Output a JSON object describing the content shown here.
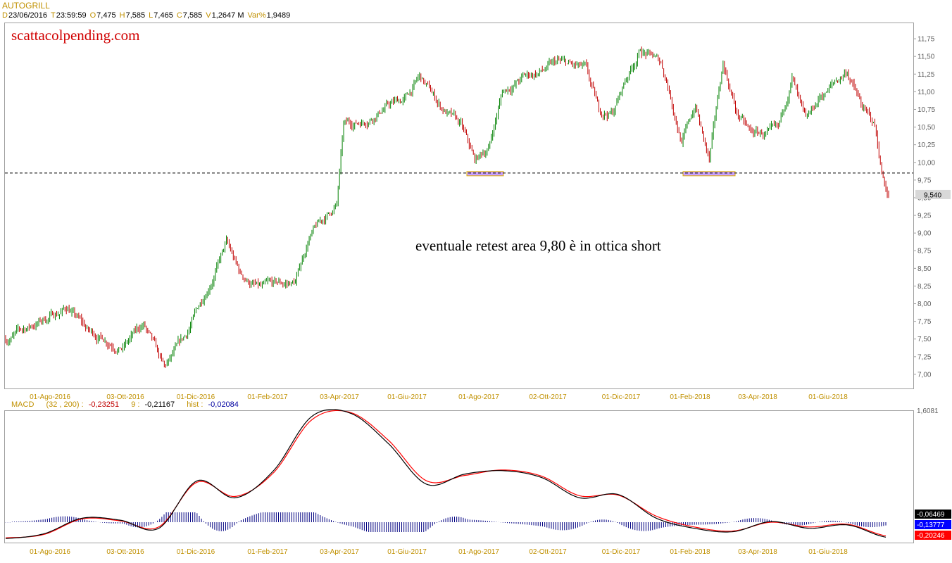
{
  "header": {
    "symbol": "AUTOGRILL",
    "fields": [
      {
        "key": "D",
        "value": "23/06/2016"
      },
      {
        "key": "T",
        "value": "23:59:59"
      },
      {
        "key": "O",
        "value": "7,475"
      },
      {
        "key": "H",
        "value": "7,585"
      },
      {
        "key": "L",
        "value": "7,465"
      },
      {
        "key": "C",
        "value": "7,585"
      },
      {
        "key": "V",
        "value": "1,2647 M"
      },
      {
        "key": "Var%",
        "value": "1,9489"
      }
    ]
  },
  "watermark": "scattacolpending.com",
  "annotation": "eventuale  retest area 9,80 è in ottica short",
  "macd_header": {
    "label": "MACD",
    "params": "(32 , 200) :",
    "macd_value": "-0,23251",
    "signal_label": "9 :",
    "signal_value": "-0,21167",
    "hist_label": "hist :",
    "hist_value": "-0,02084"
  },
  "colors": {
    "up_bar": "#008000",
    "down_bar": "#c00000",
    "axis_text": "#c09000",
    "macd_line": "#000000",
    "signal_line": "#ff0000",
    "histogram": "#000080",
    "support_highlight": "#c8a0ff"
  },
  "chart_data": [
    {
      "type": "ohlc",
      "title": "AUTOGRILL",
      "x_tick_labels": [
        "01-Ago-2016",
        "03-Ott-2016",
        "01-Dic-2016",
        "01-Feb-2017",
        "03-Apr-2017",
        "01-Giu-2017",
        "01-Ago-2017",
        "02-Ott-2017",
        "01-Dic-2017",
        "01-Feb-2018",
        "03-Apr-2018",
        "01-Giu-2018"
      ],
      "y_tick_labels": [
        "7,00",
        "7,25",
        "7,50",
        "7,75",
        "8,00",
        "8,25",
        "8,50",
        "8,75",
        "9,00",
        "9,25",
        "9,50",
        "9,75",
        "10,00",
        "10,25",
        "10,50",
        "10,75",
        "11,00",
        "11,25",
        "11,50",
        "11,75"
      ],
      "ylim": [
        6.8,
        11.95
      ],
      "last_price_label": "9,540",
      "last_price": 9.54,
      "support_level": 9.85,
      "support_zones": [
        {
          "from": "21-Jul-2017",
          "to": "18-Ago-2017",
          "level": 9.84
        },
        {
          "from": "26-Gen-2018",
          "to": "07-Mar-2018",
          "level": 9.84
        }
      ],
      "price_path": [
        {
          "week": 0,
          "close": 7.5
        },
        {
          "week": 6,
          "close": 7.8
        },
        {
          "week": 9,
          "close": 7.95
        },
        {
          "week": 12,
          "close": 7.6
        },
        {
          "week": 17,
          "close": 7.4
        },
        {
          "week": 20,
          "close": 7.7
        },
        {
          "week": 23,
          "close": 7.05
        },
        {
          "week": 26,
          "close": 7.5
        },
        {
          "week": 30,
          "close": 8.4
        },
        {
          "week": 32,
          "close": 8.85
        },
        {
          "week": 34,
          "close": 8.4
        },
        {
          "week": 37,
          "close": 8.2
        },
        {
          "week": 42,
          "close": 8.3
        },
        {
          "week": 44,
          "close": 8.95
        },
        {
          "week": 48,
          "close": 9.4
        },
        {
          "week": 49,
          "close": 10.5
        },
        {
          "week": 52,
          "close": 10.6
        },
        {
          "week": 55,
          "close": 10.8
        },
        {
          "week": 58,
          "close": 10.9
        },
        {
          "week": 60,
          "close": 11.2
        },
        {
          "week": 63,
          "close": 10.8
        },
        {
          "week": 66,
          "close": 10.5
        },
        {
          "week": 68,
          "close": 10.0
        },
        {
          "week": 70,
          "close": 10.2
        },
        {
          "week": 72,
          "close": 11.0
        },
        {
          "week": 75,
          "close": 11.2
        },
        {
          "week": 78,
          "close": 11.3
        },
        {
          "week": 80,
          "close": 11.4
        },
        {
          "week": 84,
          "close": 11.3
        },
        {
          "week": 86,
          "close": 10.7
        },
        {
          "week": 88,
          "close": 10.7
        },
        {
          "week": 90,
          "close": 11.2
        },
        {
          "week": 92,
          "close": 11.6
        },
        {
          "week": 95,
          "close": 11.4
        },
        {
          "week": 96,
          "close": 11.1
        },
        {
          "week": 98,
          "close": 10.3
        },
        {
          "week": 100,
          "close": 10.8
        },
        {
          "week": 102,
          "close": 10.0
        },
        {
          "week": 104,
          "close": 11.4
        },
        {
          "week": 106,
          "close": 10.7
        },
        {
          "week": 108,
          "close": 10.4
        },
        {
          "week": 112,
          "close": 10.4
        },
        {
          "week": 114,
          "close": 11.2
        },
        {
          "week": 116,
          "close": 10.5
        },
        {
          "week": 118,
          "close": 10.9
        },
        {
          "week": 120,
          "close": 11.1
        },
        {
          "week": 122,
          "close": 11.3
        },
        {
          "week": 124,
          "close": 10.8
        },
        {
          "week": 126,
          "close": 10.5
        },
        {
          "week": 127,
          "close": 9.85
        },
        {
          "week": 128,
          "close": 9.54
        }
      ]
    },
    {
      "type": "line",
      "title": "MACD (32 , 200)",
      "series": [
        {
          "name": "MACD",
          "values": [
            -0.25,
            -0.18,
            0.05,
            0.02,
            -0.1,
            0.6,
            0.35,
            0.75,
            1.55,
            1.6,
            1.15,
            0.55,
            0.7,
            0.75,
            0.65,
            0.35,
            0.4,
            0.05,
            -0.1,
            -0.15,
            0.0,
            -0.1,
            -0.05,
            -0.23
          ]
        },
        {
          "name": "Signal",
          "values": [
            -0.24,
            -0.19,
            0.04,
            0.01,
            -0.08,
            0.58,
            0.37,
            0.72,
            1.5,
            1.61,
            1.2,
            0.6,
            0.68,
            0.76,
            0.67,
            0.38,
            0.39,
            0.08,
            -0.08,
            -0.14,
            -0.01,
            -0.08,
            -0.04,
            -0.21
          ]
        }
      ],
      "right_axis_labels": [
        "1,6081",
        "-0,06469",
        "-0,13777",
        "-0,20246"
      ]
    }
  ]
}
